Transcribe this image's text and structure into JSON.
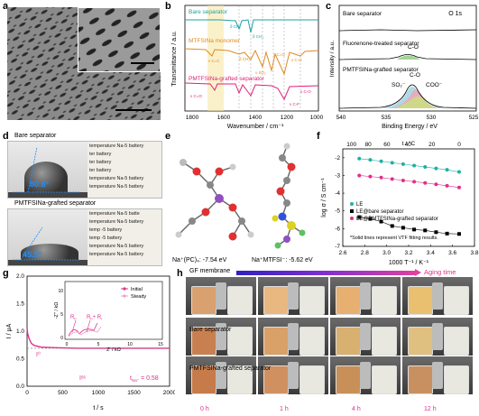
{
  "labels": {
    "a": "a",
    "b": "b",
    "c": "c",
    "d": "d",
    "e": "e",
    "f": "f",
    "g": "g",
    "h": "h"
  },
  "panel_b": {
    "ylabel": "Transmittance / a.u.",
    "xlabel": "Wavenumber / cm⁻¹",
    "ticks": [
      "1800",
      "1600",
      "1400",
      "1200",
      "1000"
    ],
    "series": [
      {
        "name": "Bare separator",
        "color": "#20a0a0"
      },
      {
        "name": "MTFSINa monomer",
        "color": "#e08a20"
      },
      {
        "name": "PMTFSINa-grafted separator",
        "color": "#e0207a"
      }
    ],
    "annotations": [
      "δ CH₂",
      "δ CH₃",
      "ν C=C",
      "δ CH₂",
      "ν C=O",
      "ν SO₂",
      "ν C-O",
      "ν C-F",
      "ν C-O",
      "ν C=O",
      "ν C-F"
    ]
  },
  "panel_c": {
    "title": "O 1s",
    "ylabel": "Intensity / a.u.",
    "xlabel": "Binding Energy / eV",
    "ticks": [
      "540",
      "535",
      "530",
      "525"
    ],
    "curves": [
      "Bare separator",
      "Fluorenone-treated separator",
      "PMTFSINa-grafted separator"
    ],
    "peaks": [
      "C-O",
      "SO₂⁻",
      "COO⁻",
      "C-O"
    ]
  },
  "panel_d": {
    "top_label": "Bare separator",
    "bottom_label": "PMTFSINa-grafted separator",
    "top_angle": "80.6°",
    "bottom_angle": "45.5°",
    "watermark_lines": [
      "temperature Na-5 battery",
      "ter battery",
      "ter battery",
      "ter battery",
      "temperature Na-5 battery",
      "temperature Na-5 battery"
    ],
    "watermark_lines_b": [
      "temperature Na-5 batte",
      "temperature Na-5 battery",
      "temp -5 battery",
      "temp -5 battery",
      "temperature Na-5 battery",
      "temperature Na-5 battery"
    ]
  },
  "panel_e": {
    "left_caption": "Na⁺(PC)₄: -7.54 eV",
    "right_caption": "Na⁺MTFSI⁻: -5.62 eV"
  },
  "panel_f": {
    "top_axis_label": "t / °C",
    "top_ticks": [
      "100",
      "80",
      "60",
      "40",
      "20",
      "0"
    ],
    "ylabel": "log σ / S cm⁻¹",
    "yticks": [
      "-2",
      "-3",
      "-4",
      "-5",
      "-6",
      "-7"
    ],
    "xlabel": "1000 T⁻¹ / K⁻¹",
    "xticks": [
      "2.6",
      "2.8",
      "3.0",
      "3.2",
      "3.4",
      "3.6",
      "3.8"
    ],
    "legend": [
      "LE",
      "LE@bare separator",
      "LE@PMTFSINa-grafted separator"
    ],
    "note": "*Solid lines represent VTF fitting results.",
    "colors": {
      "LE": "#20b0a0",
      "bare": "#000000",
      "graft": "#e0308a"
    }
  },
  "chart_data": [
    {
      "type": "scatter",
      "title": "",
      "xlabel": "1000 T⁻¹ / K⁻¹",
      "ylabel": "log σ / S cm⁻¹",
      "xlim": [
        2.6,
        3.8
      ],
      "ylim": [
        -7,
        -1.5
      ],
      "series": [
        {
          "name": "LE",
          "x": [
            2.75,
            2.85,
            2.95,
            3.05,
            3.15,
            3.25,
            3.35,
            3.45,
            3.55,
            3.66
          ],
          "y": [
            -2.05,
            -2.12,
            -2.2,
            -2.28,
            -2.36,
            -2.44,
            -2.52,
            -2.6,
            -2.68,
            -2.8
          ]
        },
        {
          "name": "LE@PMTFSINa-grafted separator",
          "x": [
            2.75,
            2.85,
            2.95,
            3.05,
            3.15,
            3.25,
            3.35,
            3.45,
            3.55,
            3.66
          ],
          "y": [
            -3.0,
            -3.06,
            -3.12,
            -3.2,
            -3.28,
            -3.35,
            -3.42,
            -3.5,
            -3.58,
            -3.68
          ]
        },
        {
          "name": "LE@bare separator",
          "x": [
            2.75,
            2.85,
            2.95,
            3.05,
            3.15,
            3.25,
            3.35,
            3.45,
            3.55,
            3.66
          ],
          "y": [
            -5.35,
            -5.45,
            -5.6,
            -5.85,
            -5.95,
            -6.05,
            -6.1,
            -6.2,
            -6.28,
            -6.3
          ]
        }
      ]
    },
    {
      "type": "line",
      "title": "",
      "xlabel": "t / s",
      "ylabel": "I / μA",
      "xlim": [
        0,
        2000
      ],
      "ylim": [
        0.0,
        2.0
      ],
      "x": [
        0,
        10,
        30,
        60,
        100,
        200,
        400,
        700,
        1000,
        1500,
        2000
      ],
      "series": [
        {
          "name": "",
          "values": [
            1.05,
            0.95,
            0.86,
            0.78,
            0.74,
            0.71,
            0.7,
            0.69,
            0.69,
            0.69,
            0.69
          ]
        }
      ]
    }
  ],
  "panel_g": {
    "ylabel": "I / μA",
    "yticks": [
      "0.0",
      "0.5",
      "1.0",
      "1.5",
      "2.0"
    ],
    "xlabel": "t / s",
    "xticks": [
      "0",
      "500",
      "1000",
      "1500",
      "2000"
    ],
    "i0": "I⁰",
    "iss": "Iˢˢ",
    "tna": "t",
    "tna_sub": "Na⁺",
    "tna_val": " = 0.58",
    "inset": {
      "ylabel": "-Z'' / kΩ",
      "xlabel": "Z' / kΩ",
      "yticks": [
        "0",
        "5",
        "10"
      ],
      "xticks": [
        "0",
        "5",
        "10",
        "15"
      ],
      "legend": [
        "Initial",
        "Steady"
      ],
      "rb": "R",
      "rb_sub": "b",
      "rbri": "R",
      "rbri_sub": "b",
      "rbri_plus": "+ R",
      "rbri_sub2": "i"
    }
  },
  "panel_h": {
    "row_labels": [
      "GF membrane",
      "Bare separator",
      "PMTFSINa-grafted separator"
    ],
    "aging": "Aging time",
    "times": [
      "0 h",
      "1 h",
      "4 h",
      "12 h"
    ]
  }
}
